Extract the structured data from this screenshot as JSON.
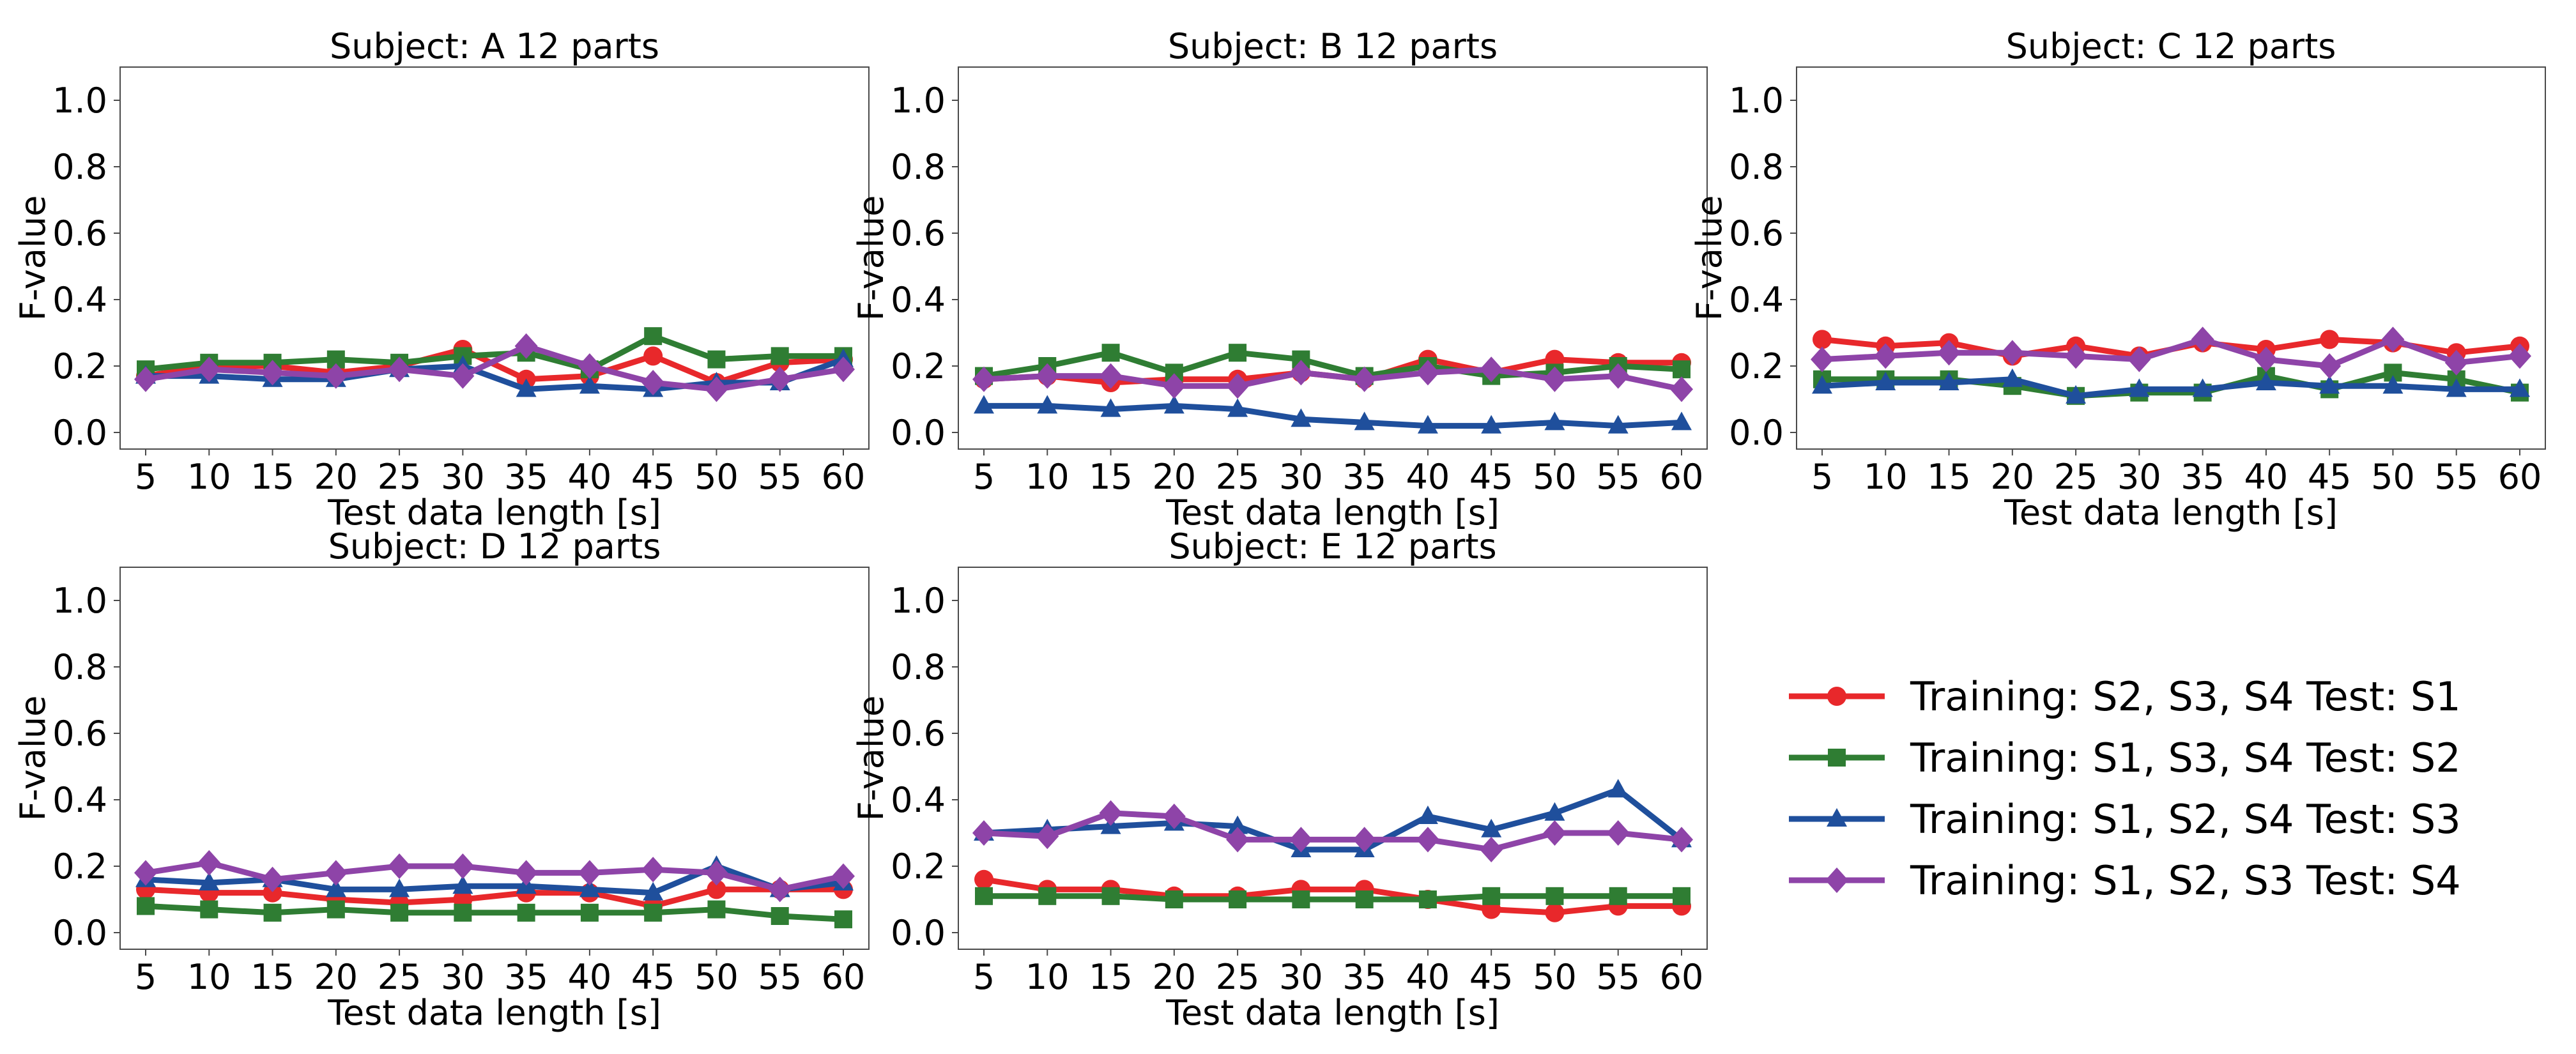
{
  "figure": {
    "x_label": "Test data length [s]",
    "y_label": "F-value"
  },
  "legend": [
    {
      "label": "Training: S2, S3, S4  Test: S1",
      "color": "#e8282b",
      "marker": "circle"
    },
    {
      "label": "Training: S1, S3, S4  Test: S2",
      "color": "#2f7d33",
      "marker": "square"
    },
    {
      "label": "Training: S1, S2, S4  Test: S3",
      "color": "#1f4f9c",
      "marker": "triangle"
    },
    {
      "label": "Training: S1, S2, S3  Test: S4",
      "color": "#8e44a8",
      "marker": "diamond"
    }
  ],
  "chart_data": [
    {
      "type": "line",
      "title": "Subject: A   12 parts",
      "xlabel": "Test data length [s]",
      "ylabel": "F-value",
      "categories": [
        "5",
        "10",
        "15",
        "20",
        "25",
        "30",
        "35",
        "40",
        "45",
        "50",
        "55",
        "60"
      ],
      "yticks": [
        "0.0",
        "0.2",
        "0.4",
        "0.6",
        "0.8",
        "1.0"
      ],
      "ylim": [
        -0.05,
        1.1
      ],
      "series": [
        {
          "name": "Training: S2, S3, S4  Test: S1",
          "values": [
            0.17,
            0.2,
            0.2,
            0.18,
            0.2,
            0.25,
            0.16,
            0.17,
            0.23,
            0.15,
            0.21,
            0.22
          ]
        },
        {
          "name": "Training: S1, S3, S4  Test: S2",
          "values": [
            0.19,
            0.21,
            0.21,
            0.22,
            0.21,
            0.23,
            0.24,
            0.19,
            0.29,
            0.22,
            0.23,
            0.23
          ]
        },
        {
          "name": "Training: S1, S2, S4  Test: S3",
          "values": [
            0.17,
            0.17,
            0.16,
            0.16,
            0.19,
            0.2,
            0.13,
            0.14,
            0.13,
            0.15,
            0.15,
            0.22
          ]
        },
        {
          "name": "Training: S1, S2, S3  Test: S4",
          "values": [
            0.16,
            0.19,
            0.18,
            0.17,
            0.19,
            0.17,
            0.26,
            0.2,
            0.15,
            0.13,
            0.16,
            0.19
          ]
        }
      ]
    },
    {
      "type": "line",
      "title": "Subject: B   12 parts",
      "xlabel": "Test data length [s]",
      "ylabel": "F-value",
      "categories": [
        "5",
        "10",
        "15",
        "20",
        "25",
        "30",
        "35",
        "40",
        "45",
        "50",
        "55",
        "60"
      ],
      "yticks": [
        "0.0",
        "0.2",
        "0.4",
        "0.6",
        "0.8",
        "1.0"
      ],
      "ylim": [
        -0.05,
        1.1
      ],
      "series": [
        {
          "name": "Training: S2, S3, S4  Test: S1",
          "values": [
            0.16,
            0.17,
            0.15,
            0.16,
            0.16,
            0.18,
            0.16,
            0.22,
            0.18,
            0.22,
            0.21,
            0.21
          ]
        },
        {
          "name": "Training: S1, S3, S4  Test: S2",
          "values": [
            0.17,
            0.2,
            0.24,
            0.18,
            0.24,
            0.22,
            0.17,
            0.2,
            0.17,
            0.18,
            0.2,
            0.19
          ]
        },
        {
          "name": "Training: S1, S2, S4  Test: S3",
          "values": [
            0.08,
            0.08,
            0.07,
            0.08,
            0.07,
            0.04,
            0.03,
            0.02,
            0.02,
            0.03,
            0.02,
            0.03
          ]
        },
        {
          "name": "Training: S1, S2, S3  Test: S4",
          "values": [
            0.16,
            0.17,
            0.17,
            0.14,
            0.14,
            0.18,
            0.16,
            0.18,
            0.19,
            0.16,
            0.17,
            0.13
          ]
        }
      ]
    },
    {
      "type": "line",
      "title": "Subject: C   12 parts",
      "xlabel": "Test data length [s]",
      "ylabel": "F-value",
      "categories": [
        "5",
        "10",
        "15",
        "20",
        "25",
        "30",
        "35",
        "40",
        "45",
        "50",
        "55",
        "60"
      ],
      "yticks": [
        "0.0",
        "0.2",
        "0.4",
        "0.6",
        "0.8",
        "1.0"
      ],
      "ylim": [
        -0.05,
        1.1
      ],
      "series": [
        {
          "name": "Training: S2, S3, S4  Test: S1",
          "values": [
            0.28,
            0.26,
            0.27,
            0.23,
            0.26,
            0.23,
            0.27,
            0.25,
            0.28,
            0.27,
            0.24,
            0.26
          ]
        },
        {
          "name": "Training: S1, S3, S4  Test: S2",
          "values": [
            0.16,
            0.16,
            0.16,
            0.14,
            0.11,
            0.12,
            0.12,
            0.17,
            0.13,
            0.18,
            0.16,
            0.12
          ]
        },
        {
          "name": "Training: S1, S2, S4  Test: S3",
          "values": [
            0.14,
            0.15,
            0.15,
            0.16,
            0.11,
            0.13,
            0.13,
            0.15,
            0.14,
            0.14,
            0.13,
            0.13
          ]
        },
        {
          "name": "Training: S1, S2, S3  Test: S4",
          "values": [
            0.22,
            0.23,
            0.24,
            0.24,
            0.23,
            0.22,
            0.28,
            0.22,
            0.2,
            0.28,
            0.21,
            0.23
          ]
        }
      ]
    },
    {
      "type": "line",
      "title": "Subject: D   12 parts",
      "xlabel": "Test data length [s]",
      "ylabel": "F-value",
      "categories": [
        "5",
        "10",
        "15",
        "20",
        "25",
        "30",
        "35",
        "40",
        "45",
        "50",
        "55",
        "60"
      ],
      "yticks": [
        "0.0",
        "0.2",
        "0.4",
        "0.6",
        "0.8",
        "1.0"
      ],
      "ylim": [
        -0.05,
        1.1
      ],
      "series": [
        {
          "name": "Training: S2, S3, S4  Test: S1",
          "values": [
            0.13,
            0.12,
            0.12,
            0.1,
            0.09,
            0.1,
            0.12,
            0.12,
            0.08,
            0.13,
            0.13,
            0.13
          ]
        },
        {
          "name": "Training: S1, S3, S4  Test: S2",
          "values": [
            0.08,
            0.07,
            0.06,
            0.07,
            0.06,
            0.06,
            0.06,
            0.06,
            0.06,
            0.07,
            0.05,
            0.04
          ]
        },
        {
          "name": "Training: S1, S2, S4  Test: S3",
          "values": [
            0.16,
            0.15,
            0.16,
            0.13,
            0.13,
            0.14,
            0.14,
            0.13,
            0.12,
            0.2,
            0.13,
            0.15
          ]
        },
        {
          "name": "Training: S1, S2, S3  Test: S4",
          "values": [
            0.18,
            0.21,
            0.16,
            0.18,
            0.2,
            0.2,
            0.18,
            0.18,
            0.19,
            0.18,
            0.13,
            0.17
          ]
        }
      ]
    },
    {
      "type": "line",
      "title": "Subject: E   12 parts",
      "xlabel": "Test data length [s]",
      "ylabel": "F-value",
      "categories": [
        "5",
        "10",
        "15",
        "20",
        "25",
        "30",
        "35",
        "40",
        "45",
        "50",
        "55",
        "60"
      ],
      "yticks": [
        "0.0",
        "0.2",
        "0.4",
        "0.6",
        "0.8",
        "1.0"
      ],
      "ylim": [
        -0.05,
        1.1
      ],
      "series": [
        {
          "name": "Training: S2, S3, S4  Test: S1",
          "values": [
            0.16,
            0.13,
            0.13,
            0.11,
            0.11,
            0.13,
            0.13,
            0.1,
            0.07,
            0.06,
            0.08,
            0.08
          ]
        },
        {
          "name": "Training: S1, S3, S4  Test: S2",
          "values": [
            0.11,
            0.11,
            0.11,
            0.1,
            0.1,
            0.1,
            0.1,
            0.1,
            0.11,
            0.11,
            0.11,
            0.11
          ]
        },
        {
          "name": "Training: S1, S2, S4  Test: S3",
          "values": [
            0.3,
            0.31,
            0.32,
            0.33,
            0.32,
            0.25,
            0.25,
            0.35,
            0.31,
            0.36,
            0.43,
            0.28
          ]
        },
        {
          "name": "Training: S1, S2, S3  Test: S4",
          "values": [
            0.3,
            0.29,
            0.36,
            0.35,
            0.28,
            0.28,
            0.28,
            0.28,
            0.25,
            0.3,
            0.3,
            0.28
          ]
        }
      ]
    }
  ]
}
